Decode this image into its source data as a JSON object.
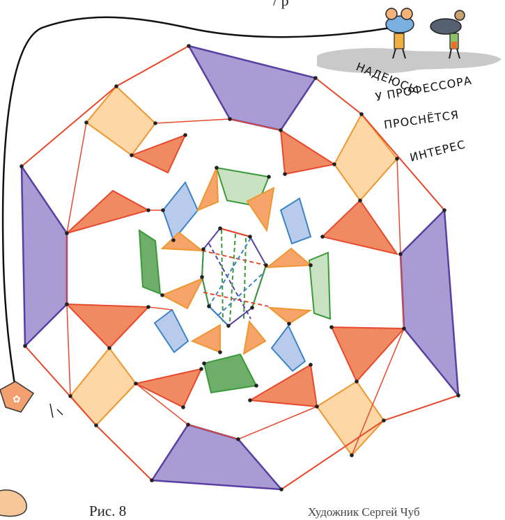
{
  "figure": {
    "caption": "Рис. 8",
    "credit": "Художник Сергей Чуб",
    "top_fragment": "/ р",
    "speech_lines": [
      "НАДЕЮСЬ",
      "У ПРОФЕССОРА",
      "ПРОСНЁТСЯ",
      "ИНТЕРЕС"
    ]
  },
  "colors": {
    "edge_red": "#e8492b",
    "edge_orange": "#f0962f",
    "edge_blue": "#3c84c8",
    "edge_green": "#3a9a3a",
    "edge_purple": "#5a3fa3",
    "fill_purple": "#a99bd3",
    "fill_light_orange": "#fdd8a6",
    "fill_dark_orange": "#ef8a62",
    "fill_mid_orange": "#f7a46a",
    "fill_blue": "#b8cbeb",
    "fill_green": "#c9e3c2",
    "fill_dark_green": "#6fae6a",
    "vertex": "#222222",
    "cloud": "#c9c9c9"
  },
  "icons": [
    "mouse-character-icon",
    "mouse-character-icon",
    "kite-icon"
  ]
}
